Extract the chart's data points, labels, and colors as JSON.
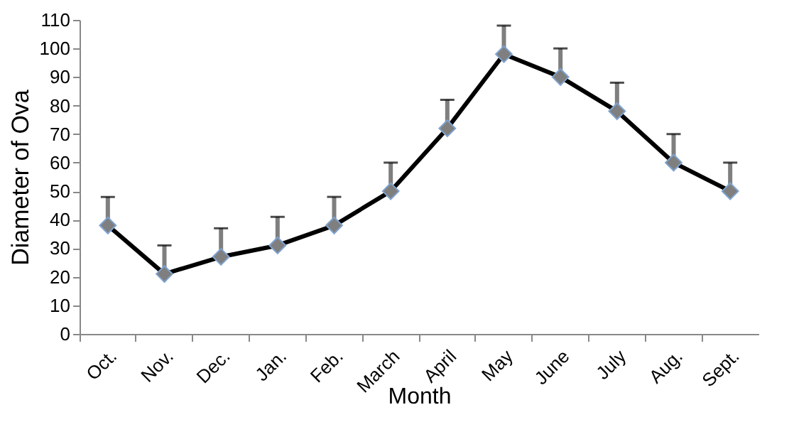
{
  "chart_data": {
    "type": "line",
    "xlabel": "Month",
    "ylabel": "Diameter of Ova",
    "categories": [
      "Oct.",
      "Nov.",
      "Dec.",
      "Jan.",
      "Feb.",
      "March",
      "April",
      "May",
      "June",
      "July",
      "Aug.",
      "Sept."
    ],
    "series": [
      {
        "color": "#000000",
        "values": [
          38,
          21,
          27,
          31,
          38,
          50,
          72,
          98,
          90,
          78,
          60,
          50
        ],
        "errors": [
          [
            38,
            48
          ],
          [
            21,
            31
          ],
          [
            27,
            37
          ],
          [
            31,
            41
          ],
          [
            38,
            48
          ],
          [
            50,
            60
          ],
          [
            72,
            82
          ],
          [
            98,
            108
          ],
          [
            90,
            100
          ],
          [
            78,
            88
          ],
          [
            60,
            70
          ],
          [
            50,
            60
          ]
        ]
      }
    ],
    "ylim": [
      0,
      110
    ],
    "yticks": [
      0,
      10,
      20,
      30,
      40,
      50,
      60,
      70,
      80,
      90,
      100,
      110
    ],
    "grid": false,
    "marker": "diamond",
    "line_style": "solid"
  }
}
